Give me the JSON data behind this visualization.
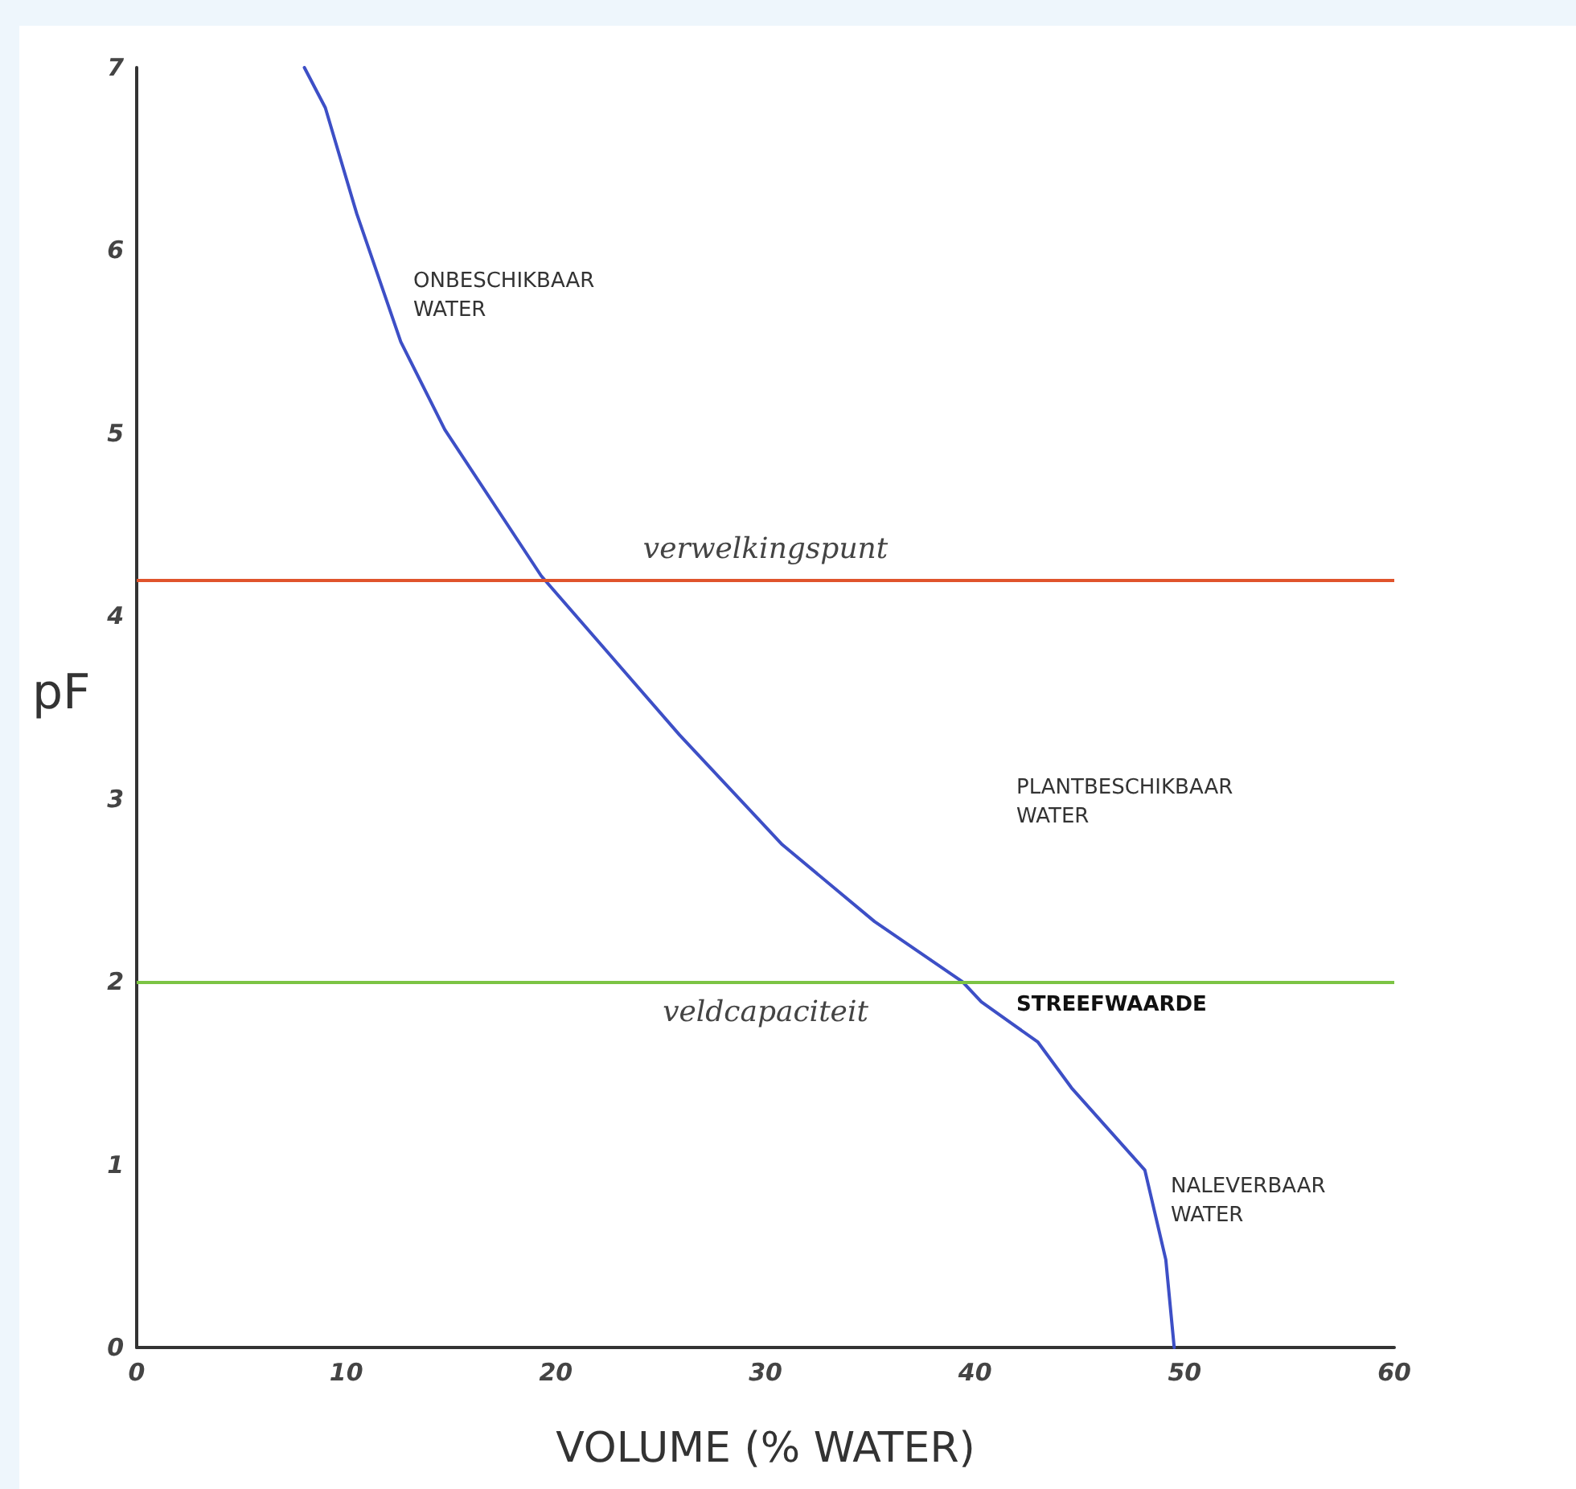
{
  "chart_data": {
    "type": "line",
    "xlabel": "VOLUME (% WATER)",
    "ylabel": "pF",
    "series": [
      {
        "color": "#3d4fc6",
        "x": [
          8.0,
          9.0,
          10.5,
          12.6,
          14.7,
          19.3,
          25.9,
          30.8,
          35.2,
          39.4,
          40.3,
          43.0,
          44.6,
          48.1,
          49.1,
          49.5
        ],
        "values": [
          7,
          6.78,
          6.2,
          5.5,
          5.02,
          4.22,
          3.35,
          2.75,
          2.33,
          2.0,
          1.89,
          1.67,
          1.42,
          0.97,
          0.48,
          0
        ]
      }
    ],
    "xlim": [
      0,
      60
    ],
    "xticks": [
      0,
      10,
      20,
      30,
      40,
      50,
      60
    ],
    "ylim": [
      0,
      7
    ],
    "yticks": [
      0,
      1,
      2,
      3,
      4,
      5,
      6,
      7
    ],
    "ref_lines": [
      {
        "axis": "y",
        "value": 4.2,
        "label": "verwelkingspunt",
        "color": "#e0542c"
      },
      {
        "axis": "y",
        "value": 2,
        "label": "veldcapaciteit",
        "color": "#7cc444"
      }
    ],
    "annotations": [
      "ONBESCHIKBAAR\nWATER",
      "PLANTBESCHIKBAAR\nWATER",
      "STREEFWAARDE",
      "NALEVERBAAR\nWATER"
    ],
    "grid": false,
    "marker": "none",
    "line_style": "solid"
  }
}
